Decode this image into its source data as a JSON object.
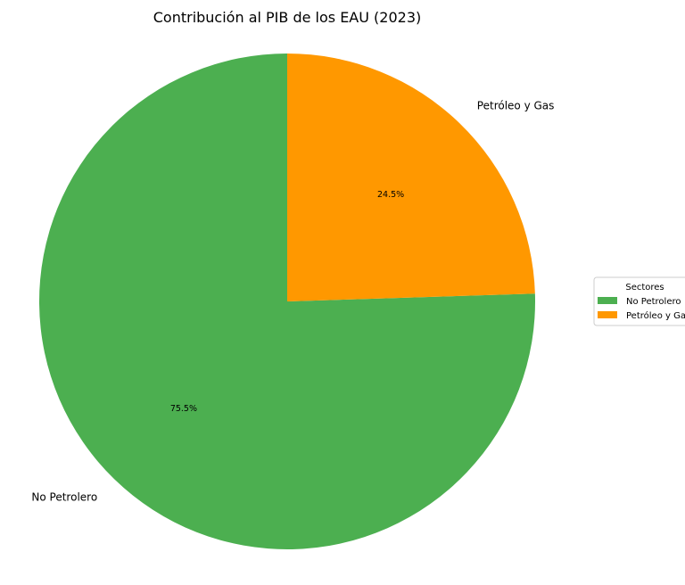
{
  "chart_data": {
    "type": "pie",
    "title": "Contribución al PIB de los EAU (2023)",
    "categories": [
      "No Petrolero",
      "Petróleo y Gas"
    ],
    "values": [
      75.5,
      24.5
    ],
    "percent_labels": [
      "75.5%",
      "24.5%"
    ],
    "colors": [
      "#4caf50",
      "#ff9800"
    ],
    "start_angle_deg": 90,
    "direction": "counterclockwise",
    "legend": {
      "title": "Sectores",
      "entries": [
        "No Petrolero",
        "Petróleo y Gas"
      ],
      "placement": "center-right"
    }
  }
}
